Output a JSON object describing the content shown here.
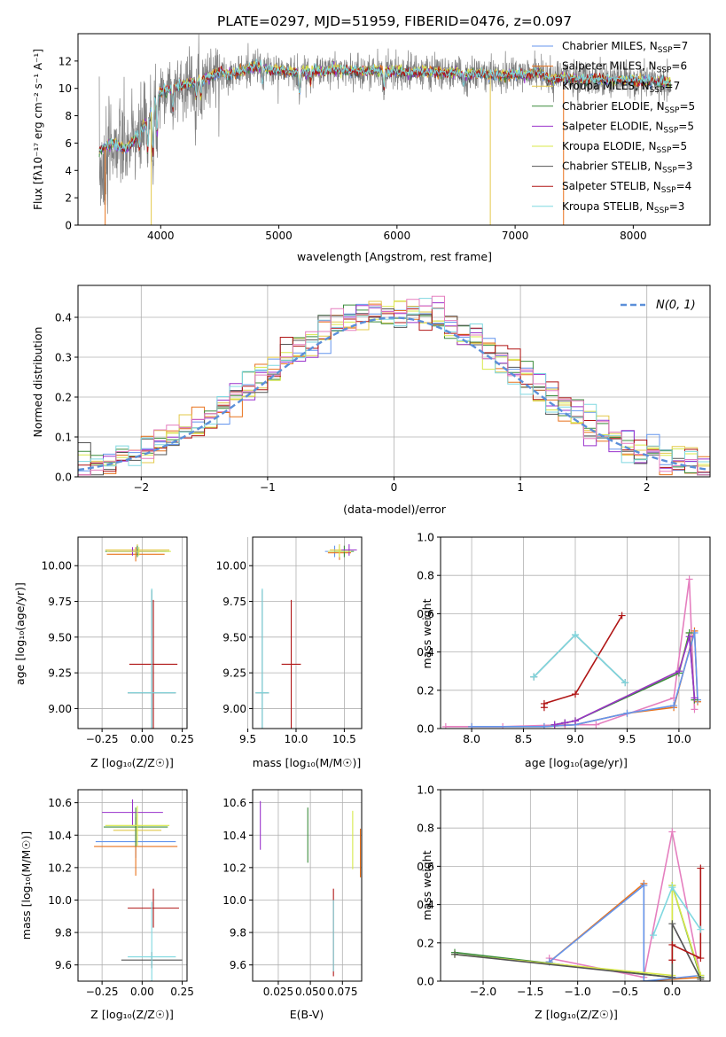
{
  "title": "PLATE=0297, MJD=51959, FIBERID=0476, z=0.097",
  "colors": {
    "chabrier_miles": "#6495ed",
    "salpeter_miles": "#e8721c",
    "kroupa_miles": "#e3c84a",
    "chabrier_elodie": "#3c8c3c",
    "salpeter_elodie": "#9932cc",
    "kroupa_elodie": "#d8e84a",
    "chabrier_stelib": "#555555",
    "salpeter_stelib": "#b01515",
    "kroupa_stelib": "#7fd8e0",
    "pink": "#e57fbf",
    "normal": "#5b8fd9",
    "grid": "#b0b0b0"
  },
  "panels": {
    "spectrum": {
      "xlabel": "wavelength [Angstrom, rest frame]",
      "ylabel": "Flux [fλ10⁻¹⁷ erg cm⁻² s⁻¹ A⁻¹]"
    },
    "residuals": {
      "xlabel": "(data-model)/error",
      "ylabel": "Normed distribution"
    },
    "age_z": {
      "xlabel": "Z [log₁₀(Z/Z☉)]",
      "ylabel": "age [log₁₀(age/yr)]"
    },
    "age_mass": {
      "xlabel": "mass [log₁₀(M/M☉)]"
    },
    "weight_age": {
      "xlabel": "age [log₁₀(age/yr)]",
      "ylabel": "mass weight"
    },
    "mass_z": {
      "xlabel": "Z [log₁₀(Z/Z☉)]",
      "ylabel": "mass [log₁₀(M/M☉)]"
    },
    "mass_ebv": {
      "xlabel": "E(B-V)"
    },
    "weight_z": {
      "xlabel": "Z [log₁₀(Z/Z☉)]",
      "ylabel": "mass weight"
    }
  },
  "chart_data": [
    {
      "type": "line",
      "title": "PLATE=0297, MJD=51959, FIBERID=0476, z=0.097",
      "xlabel": "wavelength [Angstrom, rest frame]",
      "ylabel": "Flux [fλ10⁻¹⁷ erg cm⁻² s⁻¹ A⁻¹]",
      "xlim": [
        3300,
        8650
      ],
      "ylim": [
        0,
        14
      ],
      "x_ticks": [
        "4000",
        "5000",
        "6000",
        "7000",
        "8000"
      ],
      "y_ticks": [
        "0",
        "2",
        "4",
        "6",
        "8",
        "10",
        "12"
      ],
      "continuum_points": [
        [
          3480,
          5.5
        ],
        [
          3600,
          6
        ],
        [
          3700,
          5.5
        ],
        [
          3800,
          6.5
        ],
        [
          3900,
          7.8
        ],
        [
          3950,
          9
        ],
        [
          4000,
          9.8
        ],
        [
          4100,
          10
        ],
        [
          4200,
          10.3
        ],
        [
          4300,
          10.5
        ],
        [
          4400,
          10.8
        ],
        [
          4500,
          11.2
        ],
        [
          4600,
          11
        ],
        [
          4700,
          11.3
        ],
        [
          4800,
          11.6
        ],
        [
          4900,
          11.4
        ],
        [
          5000,
          11.3
        ],
        [
          5100,
          11.2
        ],
        [
          5200,
          11.2
        ],
        [
          5300,
          11.3
        ],
        [
          5400,
          11.3
        ],
        [
          5500,
          11.4
        ],
        [
          5600,
          11.3
        ],
        [
          5700,
          11.2
        ],
        [
          5800,
          11.3
        ],
        [
          5900,
          11.2
        ],
        [
          6000,
          11.3
        ],
        [
          6100,
          11.2
        ],
        [
          6200,
          11.2
        ],
        [
          6300,
          11.2
        ],
        [
          6400,
          11.1
        ],
        [
          6500,
          11.1
        ],
        [
          6600,
          11
        ],
        [
          6700,
          11.1
        ],
        [
          6800,
          11
        ],
        [
          6900,
          11
        ],
        [
          7000,
          11
        ],
        [
          7100,
          11
        ],
        [
          7200,
          11.2
        ],
        [
          7300,
          10.6
        ],
        [
          7400,
          10.8
        ],
        [
          7500,
          10.7
        ],
        [
          7600,
          10.6
        ],
        [
          7700,
          10.7
        ],
        [
          7800,
          10.6
        ],
        [
          7900,
          10.6
        ],
        [
          8000,
          10.6
        ],
        [
          8100,
          10.5
        ],
        [
          8200,
          10.5
        ],
        [
          8300,
          10.4
        ]
      ],
      "legend": [
        {
          "label": "Chabrier MILES, N",
          "sub": "SSP",
          "tail": "=7",
          "color": "chabrier_miles"
        },
        {
          "label": "Salpeter MILES, N",
          "sub": "SSP",
          "tail": "=6",
          "color": "salpeter_miles"
        },
        {
          "label": "Kroupa MILES, N",
          "sub": "SSP",
          "tail": "=7",
          "color": "kroupa_miles"
        },
        {
          "label": "Chabrier ELODIE, N",
          "sub": "SSP",
          "tail": "=5",
          "color": "chabrier_elodie"
        },
        {
          "label": "Salpeter ELODIE, N",
          "sub": "SSP",
          "tail": "=5",
          "color": "salpeter_elodie"
        },
        {
          "label": "Kroupa ELODIE, N",
          "sub": "SSP",
          "tail": "=5",
          "color": "kroupa_elodie"
        },
        {
          "label": "Chabrier STELIB, N",
          "sub": "SSP",
          "tail": "=3",
          "color": "chabrier_stelib"
        },
        {
          "label": "Salpeter STELIB, N",
          "sub": "SSP",
          "tail": "=4",
          "color": "salpeter_stelib"
        },
        {
          "label": "Kroupa STELIB, N",
          "sub": "SSP",
          "tail": "=3",
          "color": "kroupa_stelib"
        }
      ]
    },
    {
      "type": "line",
      "xlabel": "(data-model)/error",
      "ylabel": "Normed distribution",
      "xlim": [
        -2.5,
        2.5
      ],
      "ylim": [
        0,
        0.48
      ],
      "x_ticks": [
        "−2",
        "−1",
        "0",
        "1",
        "2"
      ],
      "y_ticks": [
        "0.0",
        "0.1",
        "0.2",
        "0.3",
        "0.4"
      ],
      "bin_width": 0.1,
      "legend": "N(0, 1)",
      "normal_curve": {
        "mean": 0,
        "sigma": 1
      }
    },
    {
      "type": "scatter",
      "xlabel": "Z [log₁₀(Z/Z☉)]",
      "ylabel": "age [log₁₀(age/yr)]",
      "xlim": [
        -0.4,
        0.28
      ],
      "ylim": [
        8.86,
        10.2
      ],
      "x_ticks": [
        "−0.25",
        "0.00",
        "0.25"
      ],
      "y_ticks": [
        "9.00",
        "9.25",
        "9.50",
        "9.75",
        "10.00"
      ],
      "points": [
        {
          "x": -0.03,
          "y": 10.1,
          "xerr": 0.18,
          "yerr": 0.03,
          "color": "chabrier_miles"
        },
        {
          "x": -0.04,
          "y": 10.08,
          "xerr": 0.18,
          "yerr": 0.05,
          "color": "salpeter_miles"
        },
        {
          "x": -0.03,
          "y": 10.11,
          "xerr": 0.2,
          "yerr": 0.04,
          "color": "kroupa_miles"
        },
        {
          "x": -0.03,
          "y": 10.1,
          "xerr": 0.2,
          "yerr": 0.04,
          "color": "chabrier_elodie"
        },
        {
          "x": -0.06,
          "y": 10.1,
          "xerr": 0.15,
          "yerr": 0.03,
          "color": "salpeter_elodie"
        },
        {
          "x": -0.02,
          "y": 10.1,
          "xerr": 0.2,
          "yerr": 0.03,
          "color": "kroupa_elodie"
        },
        {
          "x": 0.06,
          "y": 9.11,
          "xerr": 0.15,
          "yerr": 0.72,
          "color": "chabrier_stelib"
        },
        {
          "x": 0.07,
          "y": 9.31,
          "xerr": 0.15,
          "yerr": 0.45,
          "color": "salpeter_stelib"
        },
        {
          "x": 0.06,
          "y": 9.11,
          "xerr": 0.15,
          "yerr": 0.73,
          "color": "kroupa_stelib"
        }
      ]
    },
    {
      "type": "scatter",
      "xlabel": "mass [log₁₀(M/M☉)]",
      "xlim": [
        9.55,
        10.68
      ],
      "ylim": [
        8.86,
        10.2
      ],
      "x_ticks": [
        "9.5",
        "10.0",
        "10.5"
      ],
      "y_ticks": [
        "9.00",
        "9.25",
        "9.50",
        "9.75",
        "10.00"
      ],
      "points": [
        {
          "x": 10.4,
          "y": 10.1,
          "xerr": 0.1,
          "yerr": 0.04,
          "color": "chabrier_miles"
        },
        {
          "x": 10.45,
          "y": 10.09,
          "xerr": 0.12,
          "yerr": 0.05,
          "color": "salpeter_miles"
        },
        {
          "x": 10.45,
          "y": 10.11,
          "xerr": 0.1,
          "yerr": 0.04,
          "color": "kroupa_miles"
        },
        {
          "x": 10.5,
          "y": 10.1,
          "xerr": 0.1,
          "yerr": 0.04,
          "color": "chabrier_elodie"
        },
        {
          "x": 10.55,
          "y": 10.11,
          "xerr": 0.08,
          "yerr": 0.04,
          "color": "salpeter_elodie"
        },
        {
          "x": 10.45,
          "y": 10.1,
          "xerr": 0.12,
          "yerr": 0.04,
          "color": "kroupa_elodie"
        },
        {
          "x": 9.65,
          "y": 9.11,
          "xerr": 0.07,
          "yerr": 0.72,
          "color": "chabrier_stelib"
        },
        {
          "x": 9.95,
          "y": 9.31,
          "xerr": 0.1,
          "yerr": 0.45,
          "color": "salpeter_stelib"
        },
        {
          "x": 9.65,
          "y": 9.11,
          "xerr": 0.07,
          "yerr": 0.73,
          "color": "kroupa_stelib"
        }
      ]
    },
    {
      "type": "line",
      "xlabel": "age [log₁₀(age/yr)]",
      "ylabel": "mass weight",
      "xlim": [
        7.7,
        10.3
      ],
      "ylim": [
        0,
        1
      ],
      "x_ticks": [
        "8.0",
        "8.5",
        "9.0",
        "9.5",
        "10.0"
      ],
      "y_ticks": [
        "0.0",
        "0.2",
        "0.4",
        "0.6",
        "0.8",
        "1.0"
      ],
      "series": [
        {
          "color": "pink",
          "x": [
            7.75,
            8.3,
            8.9,
            9.2,
            9.95,
            10.1,
            10.15
          ],
          "y": [
            0.01,
            0.01,
            0.02,
            0.02,
            0.16,
            0.78,
            0.1
          ]
        },
        {
          "color": "salpeter_miles",
          "x": [
            8.0,
            8.7,
            9.0,
            9.5,
            9.95,
            10.15,
            10.18
          ],
          "y": [
            0.01,
            0.01,
            0.02,
            0.08,
            0.11,
            0.51,
            0.14
          ]
        },
        {
          "color": "chabrier_miles",
          "x": [
            8.0,
            8.7,
            9.0,
            9.5,
            9.95,
            10.15,
            10.18
          ],
          "y": [
            0.01,
            0.01,
            0.02,
            0.08,
            0.12,
            0.5,
            0.15
          ]
        },
        {
          "color": "kroupa_elodie",
          "x": [
            8.8,
            8.9,
            9.0,
            10.0,
            10.1,
            10.15
          ],
          "y": [
            0.02,
            0.03,
            0.04,
            0.3,
            0.5,
            0.15
          ]
        },
        {
          "color": "chabrier_elodie",
          "x": [
            8.8,
            8.9,
            9.0,
            10.0,
            10.1,
            10.15
          ],
          "y": [
            0.02,
            0.03,
            0.04,
            0.29,
            0.5,
            0.15
          ]
        },
        {
          "color": "salpeter_elodie",
          "x": [
            8.8,
            8.9,
            9.0,
            10.0,
            10.1,
            10.15
          ],
          "y": [
            0.02,
            0.03,
            0.04,
            0.3,
            0.48,
            0.16
          ]
        },
        {
          "color": "salpeter_stelib",
          "x": [
            8.7,
            8.7,
            9.0,
            9.45
          ],
          "y": [
            0.11,
            0.13,
            0.18,
            0.59
          ]
        },
        {
          "color": "chabrier_stelib",
          "x": [
            8.6,
            9.0,
            9.48
          ],
          "y": [
            0.27,
            0.49,
            0.24
          ]
        },
        {
          "color": "kroupa_stelib",
          "x": [
            8.6,
            9.0,
            9.48
          ],
          "y": [
            0.27,
            0.49,
            0.24
          ]
        }
      ]
    },
    {
      "type": "scatter",
      "xlabel": "Z [log₁₀(Z/Z☉)]",
      "ylabel": "mass [log₁₀(M/M☉)]",
      "xlim": [
        -0.4,
        0.28
      ],
      "ylim": [
        9.5,
        10.68
      ],
      "x_ticks": [
        "−0.25",
        "0.00",
        "0.25"
      ],
      "y_ticks": [
        "9.6",
        "9.8",
        "10.0",
        "10.2",
        "10.4",
        "10.6"
      ],
      "points": [
        {
          "x": -0.04,
          "y": 10.36,
          "xerr": 0.25,
          "yerr": 0.1,
          "color": "chabrier_miles"
        },
        {
          "x": -0.04,
          "y": 10.33,
          "xerr": 0.26,
          "yerr": 0.18,
          "color": "salpeter_miles"
        },
        {
          "x": -0.03,
          "y": 10.43,
          "xerr": 0.15,
          "yerr": 0.1,
          "color": "kroupa_miles"
        },
        {
          "x": -0.04,
          "y": 10.45,
          "xerr": 0.2,
          "yerr": 0.12,
          "color": "chabrier_elodie"
        },
        {
          "x": -0.06,
          "y": 10.54,
          "xerr": 0.19,
          "yerr": 0.08,
          "color": "salpeter_elodie"
        },
        {
          "x": -0.03,
          "y": 10.46,
          "xerr": 0.2,
          "yerr": 0.12,
          "color": "kroupa_elodie"
        },
        {
          "x": 0.06,
          "y": 9.63,
          "xerr": 0.19,
          "yerr": 0.05,
          "color": "chabrier_stelib"
        },
        {
          "x": 0.07,
          "y": 9.95,
          "xerr": 0.16,
          "yerr": 0.12,
          "color": "salpeter_stelib"
        },
        {
          "x": 0.06,
          "y": 9.65,
          "xerr": 0.15,
          "yerr": 0.34,
          "color": "kroupa_stelib"
        }
      ]
    },
    {
      "type": "scatter",
      "xlabel": "E(B-V)",
      "xlim": [
        0.005,
        0.09
      ],
      "ylim": [
        9.5,
        10.68
      ],
      "x_ticks": [
        "0.025",
        "0.050",
        "0.075"
      ],
      "y_ticks": [
        "9.6",
        "9.8",
        "10.0",
        "10.2",
        "10.4",
        "10.6"
      ],
      "points": [
        {
          "x": 0.011,
          "y": 10.46,
          "yerr": 0.15,
          "color": "salpeter_elodie"
        },
        {
          "x": 0.048,
          "y": 10.4,
          "yerr": 0.17,
          "color": "chabrier_elodie"
        },
        {
          "x": 0.068,
          "y": 9.8,
          "yerr": 0.27,
          "color": "salpeter_stelib"
        },
        {
          "x": 0.068,
          "y": 9.78,
          "yerr": 0.22,
          "color": "kroupa_stelib"
        },
        {
          "x": 0.083,
          "y": 10.37,
          "yerr": 0.18,
          "color": "kroupa_elodie"
        },
        {
          "x": 0.089,
          "y": 10.29,
          "yerr": 0.15,
          "color": "salpeter_miles"
        }
      ]
    },
    {
      "type": "line",
      "xlabel": "Z [log₁₀(Z/Z☉)]",
      "ylabel": "mass weight",
      "xlim": [
        -2.45,
        0.4
      ],
      "ylim": [
        0,
        1
      ],
      "x_ticks": [
        "−2.0",
        "−1.5",
        "−1.0",
        "−0.5",
        "0.0"
      ],
      "y_ticks": [
        "0.0",
        "0.2",
        "0.4",
        "0.6",
        "0.8",
        "1.0"
      ],
      "series": [
        {
          "color": "pink",
          "x": [
            -1.3,
            -0.3,
            0.0,
            0.3
          ],
          "y": [
            0.12,
            0.02,
            0.78,
            0.02
          ]
        },
        {
          "color": "salpeter_miles",
          "x": [
            -1.3,
            -0.3,
            -0.3,
            0.3
          ],
          "y": [
            0.1,
            0.51,
            0.0,
            0.02
          ]
        },
        {
          "color": "chabrier_miles",
          "x": [
            -1.3,
            -0.3,
            -0.3,
            0.3
          ],
          "y": [
            0.1,
            0.5,
            0.0,
            0.03
          ]
        },
        {
          "color": "chabrier_elodie",
          "x": [
            -2.3,
            0.0,
            0.0,
            0.3
          ],
          "y": [
            0.15,
            0.02,
            0.5,
            0.02
          ]
        },
        {
          "color": "kroupa_elodie",
          "x": [
            -2.3,
            0.0,
            0.0,
            0.3
          ],
          "y": [
            0.14,
            0.03,
            0.5,
            0.03
          ]
        },
        {
          "color": "chabrier_stelib",
          "x": [
            -2.3,
            0.0,
            0.0,
            0.3
          ],
          "y": [
            0.14,
            0.02,
            0.3,
            0.01
          ]
        },
        {
          "color": "salpeter_stelib",
          "x": [
            0.0,
            0.0,
            0.3,
            0.3
          ],
          "y": [
            0.11,
            0.19,
            0.12,
            0.59
          ]
        },
        {
          "color": "kroupa_stelib",
          "x": [
            -0.2,
            0.0,
            0.3
          ],
          "y": [
            0.24,
            0.49,
            0.27
          ]
        }
      ]
    }
  ]
}
